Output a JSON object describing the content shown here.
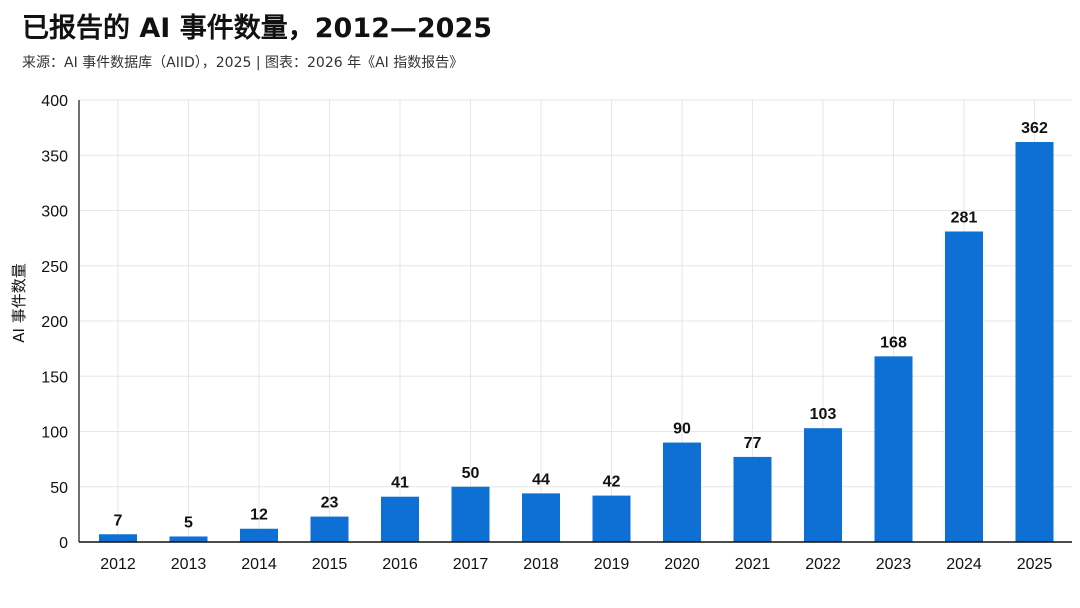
{
  "header": {
    "title": "已报告的 AI 事件数量，2012—2025",
    "subtitle": "来源：AI 事件数据库（AIID），2025 | 图表：2026 年《AI 指数报告》"
  },
  "colors": {
    "bar": "#0e6fd4",
    "grid": "#e6e6e6",
    "axis": "#111111"
  },
  "chart_data": {
    "type": "bar",
    "title": "已报告的 AI 事件数量，2012—2025",
    "xlabel": "",
    "ylabel": "AI 事件数量",
    "categories": [
      "2012",
      "2013",
      "2014",
      "2015",
      "2016",
      "2017",
      "2018",
      "2019",
      "2020",
      "2021",
      "2022",
      "2023",
      "2024",
      "2025"
    ],
    "values": [
      7,
      5,
      12,
      23,
      41,
      50,
      44,
      42,
      90,
      77,
      103,
      168,
      281,
      362
    ],
    "ylim": [
      0,
      400
    ],
    "yticks": [
      0,
      50,
      100,
      150,
      200,
      250,
      300,
      350,
      400
    ],
    "grid": true,
    "legend": "none"
  }
}
